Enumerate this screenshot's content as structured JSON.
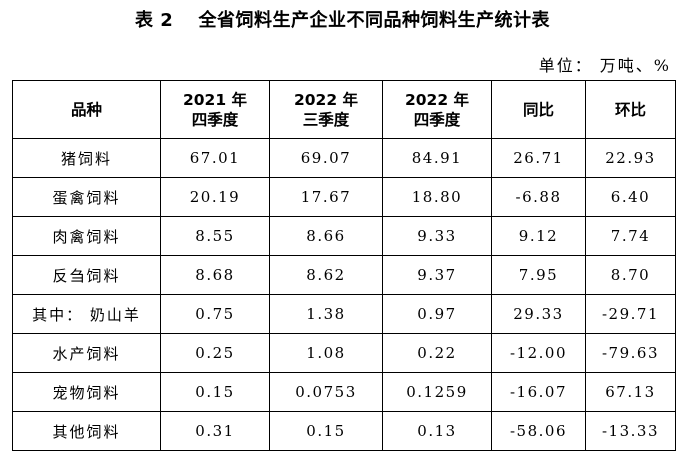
{
  "title": "表 2　 全省饲料生产企业不同品种饲料生产统计表",
  "unit": "单位： 万吨、%",
  "headers": [
    [
      "品种"
    ],
    [
      "2021 年",
      "四季度"
    ],
    [
      "2022 年",
      "三季度"
    ],
    [
      "2022 年",
      "四季度"
    ],
    [
      "同比"
    ],
    [
      "环比"
    ]
  ],
  "rows": [
    [
      "猪饲料",
      "67.01",
      "69.07",
      "84.91",
      "26.71",
      "22.93"
    ],
    [
      "蛋禽饲料",
      "20.19",
      "17.67",
      "18.80",
      "-6.88",
      "6.40"
    ],
    [
      "肉禽饲料",
      "8.55",
      "8.66",
      "9.33",
      "9.12",
      "7.74"
    ],
    [
      "反刍饲料",
      "8.68",
      "8.62",
      "9.37",
      "7.95",
      "8.70"
    ],
    [
      "其中： 奶山羊",
      "0.75",
      "1.38",
      "0.97",
      "29.33",
      "-29.71"
    ],
    [
      "水产饲料",
      "0.25",
      "1.08",
      "0.22",
      "-12.00",
      "-79.63"
    ],
    [
      "宠物饲料",
      "0.15",
      "0.0753",
      "0.1259",
      "-16.07",
      "67.13"
    ],
    [
      "其他饲料",
      "0.31",
      "0.15",
      "0.13",
      "-58.06",
      "-13.33"
    ]
  ]
}
